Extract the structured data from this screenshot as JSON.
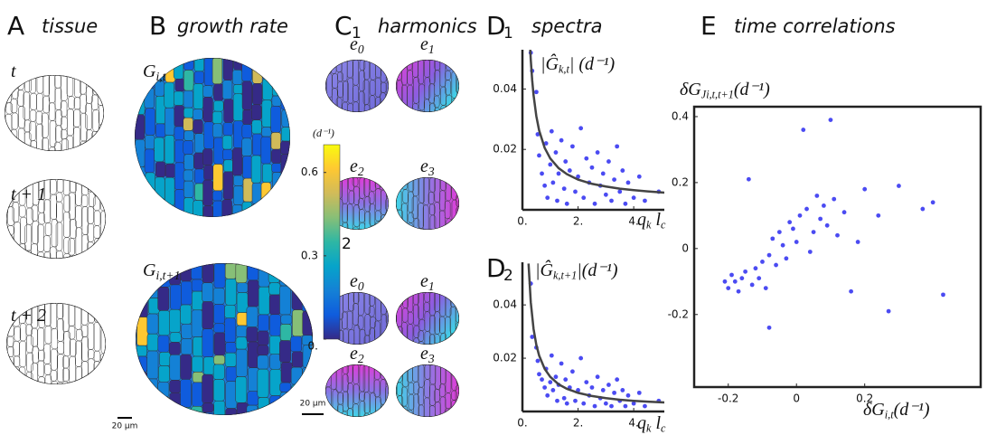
{
  "panels": {
    "A": {
      "letter": "A",
      "title": "tissue",
      "times": [
        [
          {
            "text": "t"
          }
        ],
        [
          {
            "text": "t + 1"
          }
        ],
        [
          {
            "text": "t + 2"
          }
        ]
      ],
      "scale": "20 μm"
    },
    "B": {
      "letter": "B",
      "title": "growth rate",
      "maps": [
        [
          {
            "text": "G"
          },
          {
            "sub": "i,t"
          }
        ],
        [
          {
            "text": "G"
          },
          {
            "sub": "i,t+1"
          }
        ]
      ],
      "scale": "20 μm"
    },
    "C": {
      "title": "harmonics",
      "blocks": [
        {
          "letter": "C",
          "index": "1",
          "modes": [
            [
              {
                "text": "e"
              },
              {
                "sub": "0"
              }
            ],
            [
              {
                "text": "e"
              },
              {
                "sub": "1"
              }
            ],
            [
              {
                "text": "e"
              },
              {
                "sub": "2"
              }
            ],
            [
              {
                "text": "e"
              },
              {
                "sub": "3"
              }
            ]
          ]
        },
        {
          "letter": "C",
          "index": "2",
          "modes": [
            [
              {
                "text": "e"
              },
              {
                "sub": "0"
              }
            ],
            [
              {
                "text": "e"
              },
              {
                "sub": "1"
              }
            ],
            [
              {
                "text": "e"
              },
              {
                "sub": "2"
              }
            ],
            [
              {
                "text": "e"
              },
              {
                "sub": "3"
              }
            ]
          ]
        }
      ]
    },
    "D": {
      "title": "spectra",
      "blocks": [
        {
          "letter": "D",
          "index": "1"
        },
        {
          "letter": "D",
          "index": "2"
        }
      ]
    },
    "E": {
      "letter": "E",
      "title": "time correlations"
    }
  },
  "chart_data": [
    {
      "type": "colorbar",
      "unit": "(d⁻¹)",
      "ylim": [
        0,
        0.7
      ],
      "yticks": [
        {
          "value": 0,
          "label": "0."
        },
        0.3,
        0.6
      ],
      "colors": [
        "#352a87",
        "#0f5cdd",
        "#1481d6",
        "#06a4ca",
        "#2eb7a4",
        "#87bf77",
        "#d1bb59",
        "#fec832",
        "#f9fb0e"
      ]
    },
    {
      "type": "scatter",
      "frame": "axes",
      "ylabel": [
        {
          "text": "|Ĝ"
        },
        {
          "sub": "k,t"
        },
        {
          "text": "| (d⁻¹)"
        }
      ],
      "xlabel": [
        {
          "text": "q"
        },
        {
          "sub": "k"
        },
        {
          "text": " l"
        },
        {
          "sub": "c"
        }
      ],
      "xlim": [
        0,
        5.1
      ],
      "ylim": [
        0,
        0.053
      ],
      "xticks": [
        {
          "value": 0,
          "label": "0."
        },
        {
          "value": 2,
          "label": "2."
        },
        {
          "value": 4,
          "label": "4."
        }
      ],
      "yticks": [
        0.02,
        0.04
      ],
      "series": [
        {
          "color": "#2b2bf0",
          "x": [
            0.3,
            0.35,
            0.5,
            0.55,
            0.6,
            0.7,
            0.8,
            0.85,
            0.9,
            1.0,
            1.05,
            1.1,
            1.2,
            1.25,
            1.3,
            1.4,
            1.5,
            1.55,
            1.6,
            1.7,
            1.8,
            1.9,
            2.0,
            2.1,
            2.2,
            2.3,
            2.4,
            2.5,
            2.6,
            2.7,
            2.8,
            2.9,
            3.0,
            3.1,
            3.2,
            3.3,
            3.4,
            3.5,
            3.6,
            3.7,
            3.8,
            4.0,
            4.2,
            4.4,
            4.9
          ],
          "values": [
            0.052,
            0.046,
            0.039,
            0.025,
            0.018,
            0.012,
            0.008,
            0.022,
            0.004,
            0.015,
            0.026,
            0.009,
            0.019,
            0.003,
            0.012,
            0.023,
            0.007,
            0.016,
            0.002,
            0.013,
            0.021,
            0.006,
            0.011,
            0.027,
            0.004,
            0.017,
            0.009,
            0.014,
            0.002,
            0.019,
            0.008,
            0.012,
            0.005,
            0.016,
            0.003,
            0.01,
            0.021,
            0.006,
            0.013,
            0.002,
            0.009,
            0.004,
            0.011,
            0.003,
            0.006
          ]
        },
        {
          "type": "line",
          "color": "#444444",
          "x": [
            0.26,
            0.3,
            0.35,
            0.4,
            0.5,
            0.6,
            0.8,
            1,
            1.3,
            1.6,
            2,
            2.5,
            3,
            3.5,
            4,
            4.5,
            5.1
          ],
          "values": [
            0.0568,
            0.0497,
            0.043,
            0.038,
            0.031,
            0.0263,
            0.0205,
            0.017,
            0.0138,
            0.0118,
            0.01,
            0.0086,
            0.0077,
            0.007,
            0.0065,
            0.0061,
            0.0057
          ]
        }
      ]
    },
    {
      "type": "scatter",
      "frame": "axes",
      "ylabel": [
        {
          "text": "|Ĝ"
        },
        {
          "sub": "k,t+1"
        },
        {
          "text": "|(d⁻¹)"
        }
      ],
      "xlabel": [
        {
          "text": "q"
        },
        {
          "sub": "k"
        },
        {
          "text": " l"
        },
        {
          "sub": "c"
        }
      ],
      "xlim": [
        0,
        5.1
      ],
      "ylim": [
        0,
        0.056
      ],
      "xticks": [
        {
          "value": 0,
          "label": "0."
        },
        {
          "value": 2,
          "label": "2."
        },
        {
          "value": 4,
          "label": "4."
        }
      ],
      "yticks": [
        0.02,
        0.04
      ],
      "series": [
        {
          "color": "#2b2bf0",
          "x": [
            0.3,
            0.35,
            0.5,
            0.55,
            0.6,
            0.7,
            0.8,
            0.85,
            0.9,
            1.0,
            1.05,
            1.1,
            1.2,
            1.25,
            1.3,
            1.4,
            1.5,
            1.55,
            1.6,
            1.7,
            1.8,
            1.9,
            2.0,
            2.1,
            2.2,
            2.3,
            2.4,
            2.5,
            2.6,
            2.7,
            2.8,
            2.9,
            3.0,
            3.1,
            3.2,
            3.3,
            3.4,
            3.5,
            3.6,
            3.7,
            3.8,
            4.0,
            4.2,
            4.4,
            4.9
          ],
          "values": [
            0.048,
            0.028,
            0.024,
            0.019,
            0.014,
            0.012,
            0.009,
            0.016,
            0.006,
            0.011,
            0.021,
            0.008,
            0.013,
            0.004,
            0.01,
            0.018,
            0.005,
            0.012,
            0.003,
            0.009,
            0.015,
            0.004,
            0.008,
            0.02,
            0.003,
            0.011,
            0.006,
            0.009,
            0.002,
            0.013,
            0.005,
            0.008,
            0.003,
            0.01,
            0.002,
            0.007,
            0.012,
            0.004,
            0.008,
            0.002,
            0.006,
            0.003,
            0.007,
            0.002,
            0.004
          ]
        },
        {
          "type": "line",
          "color": "#444444",
          "x": [
            0.22,
            0.3,
            0.4,
            0.5,
            0.6,
            0.8,
            1,
            1.3,
            1.6,
            2,
            2.5,
            3,
            3.5,
            4,
            4.5,
            5.1
          ],
          "values": [
            0.0555,
            0.041,
            0.031,
            0.025,
            0.021,
            0.016,
            0.013,
            0.0102,
            0.0085,
            0.007,
            0.0058,
            0.005,
            0.0044,
            0.004,
            0.0037,
            0.0034
          ]
        }
      ]
    },
    {
      "type": "scatter",
      "frame": "box",
      "ylabel": [
        {
          "text": "δG"
        },
        {
          "sub": "J"
        },
        {
          "sub": "i,t"
        },
        {
          "sub": ",t+1"
        },
        {
          "text": "(d⁻¹)"
        }
      ],
      "xlabel": [
        {
          "text": "δG"
        },
        {
          "sub": "i,t"
        },
        {
          "text": "(d⁻¹)"
        }
      ],
      "xlim": [
        -0.3,
        0.54
      ],
      "ylim": [
        -0.42,
        0.43
      ],
      "xticks": [
        -0.2,
        0,
        0.2
      ],
      "yticks": [
        -0.2,
        0,
        0.2,
        0.4
      ],
      "series": [
        {
          "color": "#2b2bf0",
          "x": [
            -0.21,
            -0.2,
            -0.19,
            -0.18,
            -0.17,
            -0.16,
            -0.15,
            -0.14,
            -0.13,
            -0.12,
            -0.11,
            -0.1,
            -0.09,
            -0.08,
            -0.08,
            -0.07,
            -0.06,
            -0.05,
            -0.04,
            -0.03,
            -0.02,
            -0.01,
            0,
            0.01,
            0.02,
            0.03,
            0.04,
            0.05,
            0.06,
            0.07,
            0.08,
            0.09,
            0.1,
            0.11,
            0.12,
            0.14,
            0.16,
            0.18,
            0.2,
            0.24,
            0.27,
            0.3,
            0.37,
            0.4,
            0.43
          ],
          "values": [
            -0.1,
            -0.12,
            -0.08,
            -0.1,
            -0.13,
            -0.09,
            -0.07,
            0.21,
            -0.11,
            -0.06,
            -0.09,
            -0.04,
            -0.12,
            -0.24,
            -0.02,
            0.03,
            -0.05,
            0.05,
            0.01,
            -0.03,
            0.08,
            0.06,
            0.02,
            0.1,
            0.36,
            0.12,
            -0.01,
            0.05,
            0.16,
            0.09,
            0.13,
            0.07,
            0.39,
            0.15,
            0.04,
            0.11,
            -0.13,
            0.02,
            0.18,
            0.1,
            -0.19,
            0.19,
            0.12,
            0.14,
            -0.14
          ]
        }
      ]
    }
  ]
}
